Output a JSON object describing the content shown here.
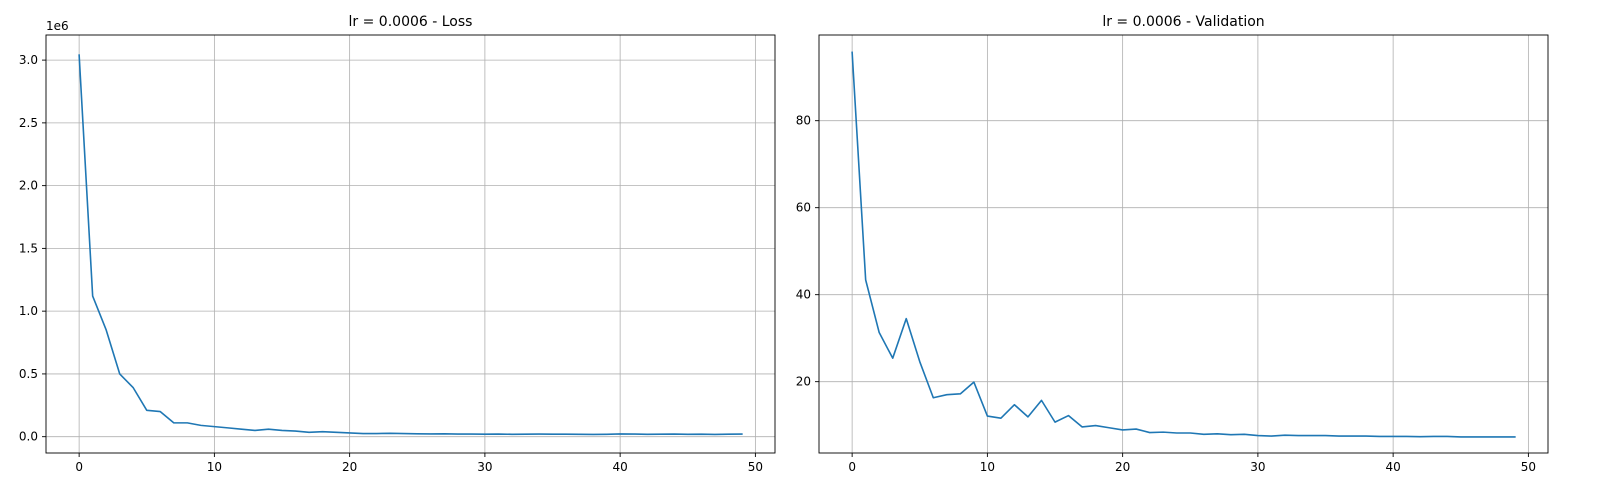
{
  "chart_data": [
    {
      "type": "line",
      "title": "lr = 0.0006 - Loss",
      "xlabel": "",
      "ylabel": "",
      "offset_text": "1e6",
      "xlim": [
        -2.45,
        51.45
      ],
      "ylim": [
        -0.13,
        3.2
      ],
      "xticks": [
        0,
        10,
        20,
        30,
        40,
        50
      ],
      "xtick_labels": [
        "0",
        "10",
        "20",
        "30",
        "40",
        "50"
      ],
      "yticks": [
        0.0,
        0.5,
        1.0,
        1.5,
        2.0,
        2.5,
        3.0
      ],
      "ytick_labels": [
        "0.0",
        "0.5",
        "1.0",
        "1.5",
        "2.0",
        "2.5",
        "3.0"
      ],
      "grid": true,
      "color": "#1f77b4",
      "series": [
        {
          "x": [
            0,
            1,
            2,
            3,
            4,
            5,
            6,
            7,
            8,
            9,
            10,
            11,
            12,
            13,
            14,
            15,
            16,
            17,
            18,
            19,
            20,
            21,
            22,
            23,
            24,
            25,
            26,
            27,
            28,
            29,
            30,
            31,
            32,
            33,
            34,
            35,
            36,
            37,
            38,
            39,
            40,
            41,
            42,
            43,
            44,
            45,
            46,
            47,
            48,
            49
          ],
          "values": [
            3.04,
            1.12,
            0.85,
            0.5,
            0.39,
            0.21,
            0.2,
            0.11,
            0.11,
            0.09,
            0.08,
            0.07,
            0.06,
            0.05,
            0.06,
            0.05,
            0.045,
            0.035,
            0.04,
            0.035,
            0.03,
            0.025,
            0.025,
            0.027,
            0.025,
            0.023,
            0.022,
            0.023,
            0.021,
            0.021,
            0.02,
            0.021,
            0.019,
            0.02,
            0.021,
            0.02,
            0.02,
            0.019,
            0.018,
            0.019,
            0.022,
            0.021,
            0.019,
            0.02,
            0.021,
            0.019,
            0.02,
            0.018,
            0.02,
            0.021
          ]
        }
      ]
    },
    {
      "type": "line",
      "title": "lr = 0.0006 - Validation",
      "xlabel": "",
      "ylabel": "",
      "xlim": [
        -2.45,
        51.45
      ],
      "ylim": [
        3.6,
        99.7
      ],
      "xticks": [
        0,
        10,
        20,
        30,
        40,
        50
      ],
      "xtick_labels": [
        "0",
        "10",
        "20",
        "30",
        "40",
        "50"
      ],
      "yticks": [
        20,
        40,
        60,
        80
      ],
      "ytick_labels": [
        "20",
        "40",
        "60",
        "80"
      ],
      "grid": true,
      "color": "#1f77b4",
      "series": [
        {
          "x": [
            0,
            1,
            2,
            3,
            4,
            5,
            6,
            7,
            8,
            9,
            10,
            11,
            12,
            13,
            14,
            15,
            16,
            17,
            18,
            19,
            20,
            21,
            22,
            23,
            24,
            25,
            26,
            27,
            28,
            29,
            30,
            31,
            32,
            33,
            34,
            35,
            36,
            37,
            38,
            39,
            40,
            41,
            42,
            43,
            44,
            45,
            46,
            47,
            48,
            49
          ],
          "values": [
            95.7,
            43.4,
            31.3,
            25.4,
            34.5,
            24.6,
            16.3,
            17.0,
            17.2,
            19.9,
            12.1,
            11.6,
            14.7,
            11.9,
            15.7,
            10.7,
            12.2,
            9.6,
            9.9,
            9.4,
            8.9,
            9.1,
            8.3,
            8.4,
            8.2,
            8.2,
            7.9,
            8.0,
            7.8,
            7.9,
            7.6,
            7.5,
            7.7,
            7.6,
            7.6,
            7.6,
            7.5,
            7.5,
            7.5,
            7.4,
            7.4,
            7.4,
            7.35,
            7.4,
            7.4,
            7.3,
            7.3,
            7.3,
            7.3,
            7.3
          ]
        }
      ]
    }
  ]
}
